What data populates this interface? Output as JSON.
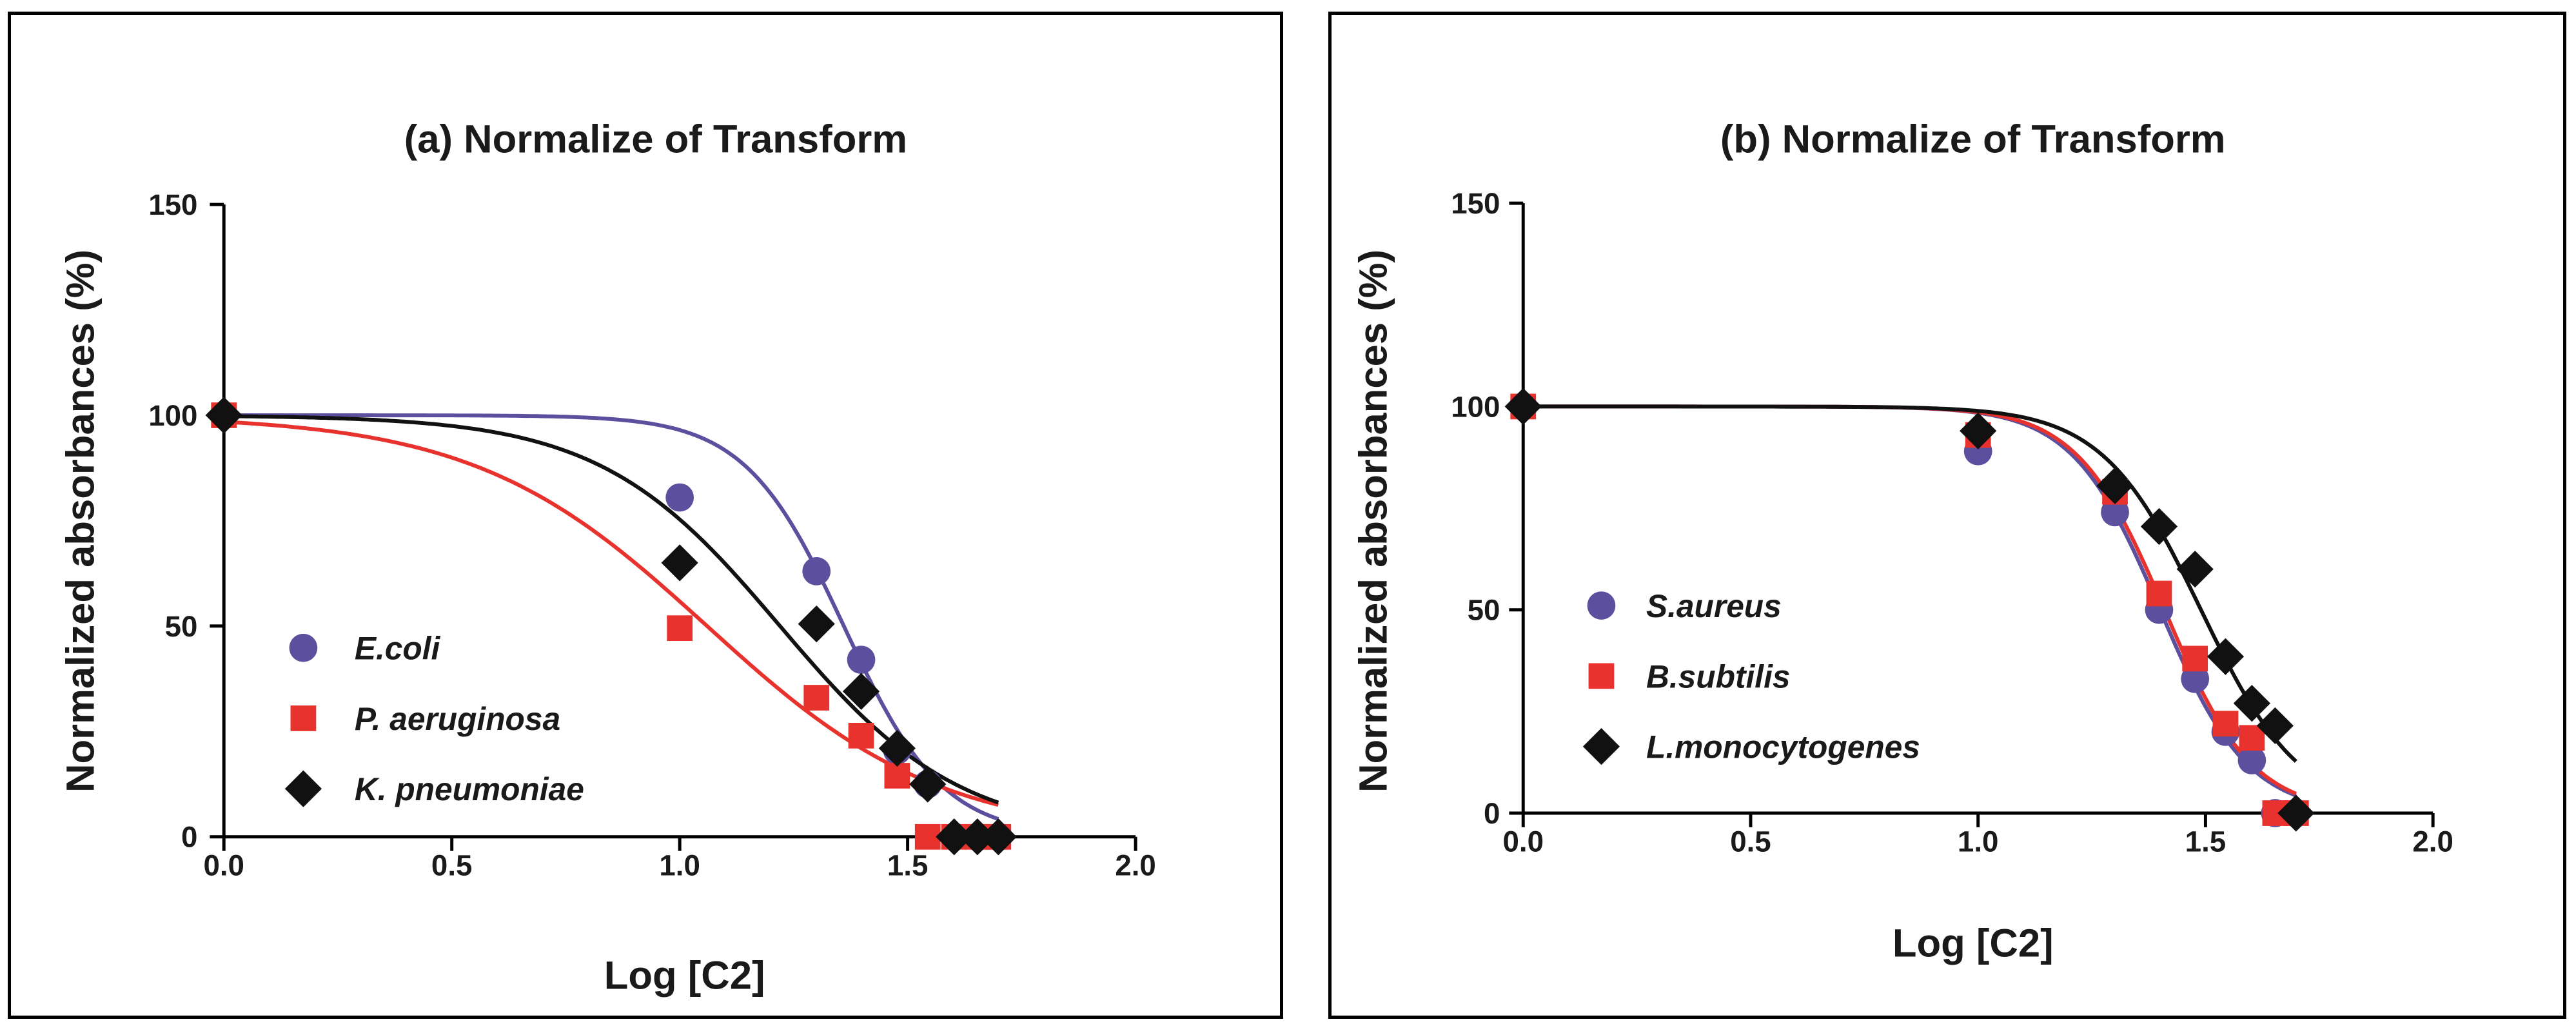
{
  "chart_data": [
    {
      "type": "scatter",
      "title": "(a) Normalize of Transform",
      "xlabel": "Log [C2]",
      "ylabel": "Normalized absorbances (%)",
      "xlim": [
        0,
        2.0
      ],
      "ylim": [
        0,
        150
      ],
      "xticks": [
        "0.0",
        "0.5",
        "1.0",
        "1.5",
        "2.0"
      ],
      "yticks": [
        "0",
        "50",
        "100",
        "150"
      ],
      "legend_position": "bottom-left",
      "series": [
        {
          "name": "E.coli",
          "marker": "circle",
          "color": "#5b4f9e",
          "points": [
            [
              0.0,
              100
            ],
            [
              1.0,
              80.5
            ],
            [
              1.3,
              63
            ],
            [
              1.398,
              42
            ],
            [
              1.477,
              20.5
            ],
            [
              1.544,
              12.5
            ],
            [
              1.602,
              0
            ],
            [
              1.653,
              0
            ],
            [
              1.699,
              0
            ]
          ],
          "fit": {
            "top": 100,
            "bottom": 0,
            "logIC50": 1.36,
            "hill": -4.0
          }
        },
        {
          "name": "P. aeruginosa",
          "marker": "square",
          "color": "#e8322d",
          "points": [
            [
              0.0,
              100
            ],
            [
              1.0,
              49.5
            ],
            [
              1.3,
              33
            ],
            [
              1.398,
              24
            ],
            [
              1.477,
              14.5
            ],
            [
              1.544,
              0
            ],
            [
              1.602,
              0
            ],
            [
              1.653,
              0
            ],
            [
              1.699,
              0
            ]
          ],
          "fit": {
            "top": 100,
            "bottom": 0,
            "logIC50": 1.06,
            "hill": -1.7
          }
        },
        {
          "name": "K. pneumoniae",
          "marker": "diamond",
          "color": "#111111",
          "points": [
            [
              0.0,
              100
            ],
            [
              1.0,
              65
            ],
            [
              1.3,
              50.5
            ],
            [
              1.398,
              34.5
            ],
            [
              1.477,
              21
            ],
            [
              1.544,
              12.5
            ],
            [
              1.602,
              0
            ],
            [
              1.653,
              0
            ],
            [
              1.699,
              0
            ]
          ],
          "fit": {
            "top": 100,
            "bottom": 0,
            "logIC50": 1.22,
            "hill": -2.2
          }
        }
      ]
    },
    {
      "type": "scatter",
      "title": "(b) Normalize of Transform",
      "xlabel": "Log [C2]",
      "ylabel": "Normalized absorbances (%)",
      "xlim": [
        0,
        2.0
      ],
      "ylim": [
        0,
        150
      ],
      "xticks": [
        "0.0",
        "0.5",
        "1.0",
        "1.5",
        "2.0"
      ],
      "yticks": [
        "0",
        "50",
        "100",
        "150"
      ],
      "legend_position": "bottom-left",
      "series": [
        {
          "name": "S.aureus",
          "marker": "circle",
          "color": "#5b4f9e",
          "points": [
            [
              0.0,
              100
            ],
            [
              1.0,
              89
            ],
            [
              1.301,
              74
            ],
            [
              1.398,
              50
            ],
            [
              1.477,
              33
            ],
            [
              1.544,
              20
            ],
            [
              1.602,
              13
            ],
            [
              1.653,
              0
            ],
            [
              1.699,
              0
            ]
          ],
          "fit": {
            "top": 100,
            "bottom": 0,
            "logIC50": 1.4,
            "hill": -4.5
          }
        },
        {
          "name": "B.subtilis",
          "marker": "square",
          "color": "#e8322d",
          "points": [
            [
              0.0,
              100
            ],
            [
              1.0,
              93
            ],
            [
              1.301,
              79
            ],
            [
              1.398,
              54
            ],
            [
              1.477,
              38
            ],
            [
              1.544,
              22
            ],
            [
              1.602,
              18.5
            ],
            [
              1.653,
              0
            ],
            [
              1.699,
              0
            ]
          ],
          "fit": {
            "top": 100,
            "bottom": 0,
            "logIC50": 1.41,
            "hill": -4.5
          }
        },
        {
          "name": "L.monocytogenes",
          "marker": "diamond",
          "color": "#111111",
          "points": [
            [
              0.0,
              100
            ],
            [
              1.0,
              94
            ],
            [
              1.301,
              80.5
            ],
            [
              1.398,
              70.5
            ],
            [
              1.477,
              60
            ],
            [
              1.544,
              38.5
            ],
            [
              1.602,
              27
            ],
            [
              1.653,
              21.5
            ],
            [
              1.699,
              0
            ]
          ],
          "fit": {
            "top": 100,
            "bottom": 0,
            "logIC50": 1.49,
            "hill": -4.0
          }
        }
      ]
    }
  ]
}
